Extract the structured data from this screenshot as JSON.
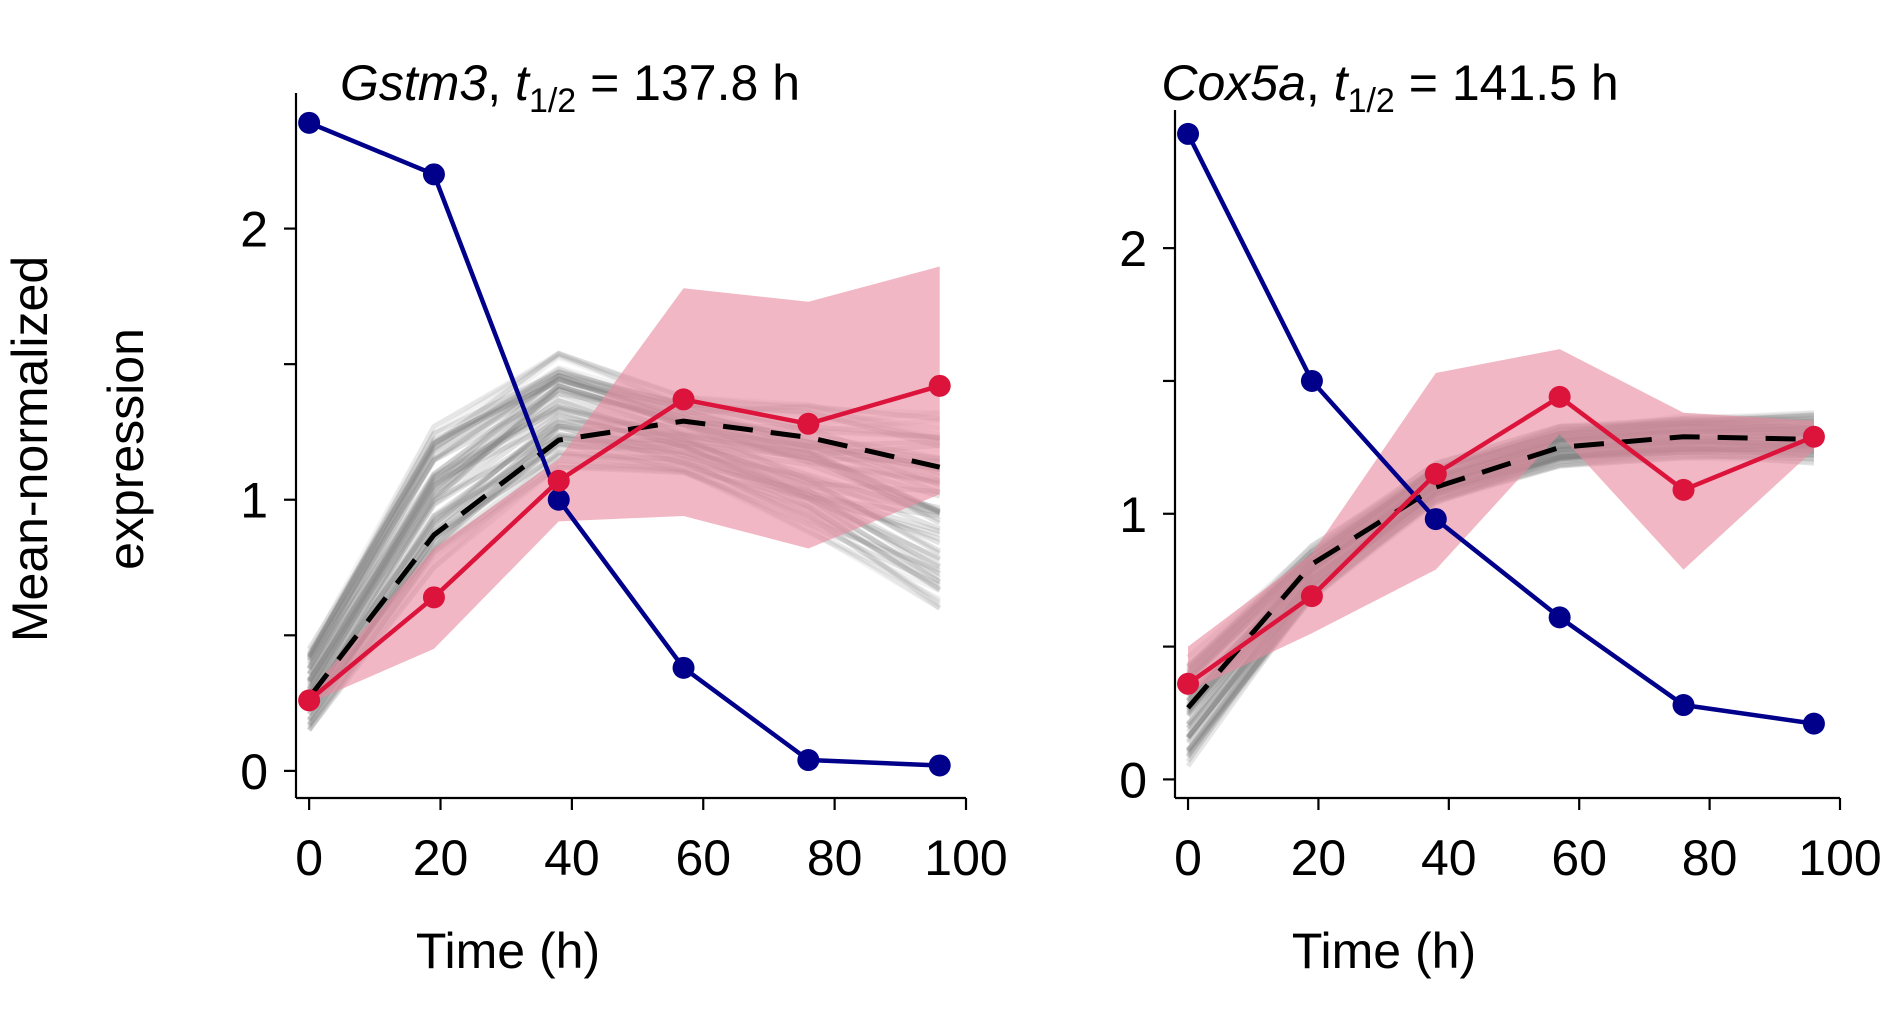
{
  "figure": {
    "ylabel_lines": [
      "Mean-normalized",
      "expression"
    ]
  },
  "colors": {
    "decay": "#00008B",
    "synthesis": "#DC143C",
    "band": "#E88AA0",
    "fit_cloud": "#808080",
    "fit_mean": "#000000"
  },
  "chart_data": [
    {
      "type": "line",
      "title": {
        "gene": "Gstm3",
        "rest": ", ",
        "t": "t",
        "sub": "1/2",
        "value": " = 137.8 h"
      },
      "xlabel": "Time (h)",
      "ylabel": "Mean-normalized expression",
      "xlim": [
        -2,
        100
      ],
      "ylim": [
        -0.1,
        2.5
      ],
      "xticks": [
        0,
        20,
        40,
        60,
        80,
        100
      ],
      "yticks_major": [
        0,
        1,
        2
      ],
      "yticks_minor": [
        0.5,
        1.5
      ],
      "x": [
        0,
        19,
        38,
        57,
        76,
        96
      ],
      "series": [
        {
          "role": "decay",
          "values": [
            2.39,
            2.2,
            1.0,
            0.38,
            0.04,
            0.02
          ]
        },
        {
          "role": "synthesis",
          "values": [
            0.26,
            0.64,
            1.07,
            1.37,
            1.28,
            1.42
          ]
        },
        {
          "role": "fit_mean",
          "values": [
            0.27,
            0.87,
            1.22,
            1.29,
            1.23,
            1.12
          ]
        }
      ],
      "band": {
        "lower": [
          0.25,
          0.45,
          0.92,
          0.94,
          0.82,
          1.02
        ],
        "upper": [
          0.29,
          0.82,
          1.15,
          1.78,
          1.73,
          1.86
        ]
      },
      "fit_cloud": {
        "lower": [
          0.15,
          0.75,
          1.12,
          1.1,
          0.88,
          0.6
        ],
        "upper": [
          0.45,
          1.27,
          1.54,
          1.38,
          1.35,
          1.32
        ]
      }
    },
    {
      "type": "line",
      "title": {
        "gene": "Cox5a",
        "rest": ", ",
        "t": "t",
        "sub": "1/2",
        "value": " = 141.5 h"
      },
      "xlabel": "Time (h)",
      "ylabel": "",
      "xlim": [
        -2,
        100
      ],
      "ylim": [
        -0.07,
        2.52
      ],
      "xticks": [
        0,
        20,
        40,
        60,
        80,
        100
      ],
      "yticks_major": [
        0,
        1,
        2
      ],
      "yticks_minor": [
        0.5,
        1.5
      ],
      "x": [
        0,
        19,
        38,
        57,
        76,
        96
      ],
      "series": [
        {
          "role": "decay",
          "values": [
            2.43,
            1.5,
            0.98,
            0.61,
            0.28,
            0.21
          ]
        },
        {
          "role": "synthesis",
          "values": [
            0.36,
            0.69,
            1.15,
            1.44,
            1.09,
            1.29
          ]
        },
        {
          "role": "fit_mean",
          "values": [
            0.27,
            0.81,
            1.1,
            1.25,
            1.29,
            1.28
          ]
        }
      ],
      "band": {
        "lower": [
          0.33,
          0.55,
          0.79,
          1.3,
          0.79,
          1.24
        ],
        "upper": [
          0.5,
          0.85,
          1.53,
          1.62,
          1.38,
          1.35
        ]
      },
      "fit_cloud": {
        "lower": [
          0.05,
          0.68,
          1.04,
          1.18,
          1.21,
          1.19
        ],
        "upper": [
          0.46,
          0.88,
          1.19,
          1.33,
          1.37,
          1.38
        ]
      }
    }
  ]
}
